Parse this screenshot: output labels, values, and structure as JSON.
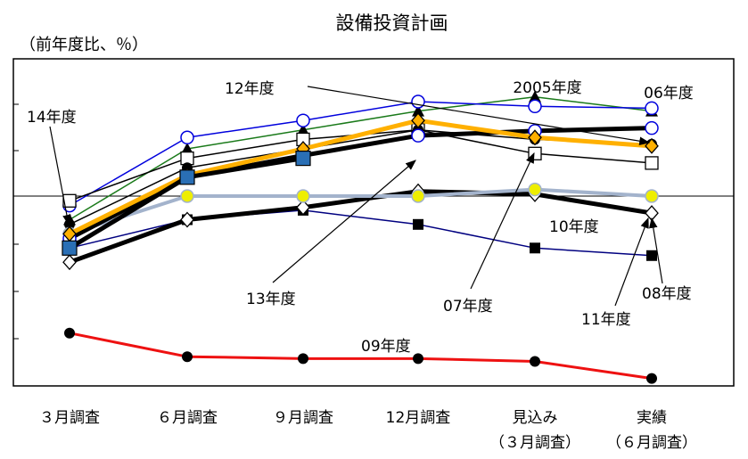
{
  "chart_data": {
    "type": "line",
    "title": "設備投資計画",
    "ylabel": "（前年度比、％）",
    "categories": [
      "３月調査",
      "６月調査",
      "９月調査",
      "12月調査",
      "見込み",
      "実績"
    ],
    "category_sublabels": [
      "",
      "",
      "",
      "",
      "（３月調査）",
      "（６月調査）"
    ],
    "ylim": [
      -20,
      15
    ],
    "grid": false,
    "zero_line": true,
    "series": [
      {
        "name": "2005年度",
        "values": [
          -2.5,
          5,
          7,
          9,
          10.5,
          9
        ],
        "color": "#1a7a1a",
        "width": 1.5,
        "marker": "triangle-filled",
        "marker_color": "#000000"
      },
      {
        "name": "06年度",
        "values": [
          -1,
          6.2,
          8,
          10,
          9.5,
          9.3
        ],
        "color": "#0000dd",
        "width": 1.5,
        "marker": "circle-open",
        "marker_color": "#0000dd"
      },
      {
        "name": "07年度",
        "values": [
          -3,
          3,
          5,
          7,
          6,
          5.5
        ],
        "color": "#000000",
        "width": 1.5,
        "marker": "circle-filled",
        "marker_color": "#000000"
      },
      {
        "name": "08年度",
        "values": [
          -5.5,
          -2.5,
          -1.5,
          -3,
          -5.5,
          -6.3
        ],
        "color": "#000080",
        "width": 1.5,
        "marker": "square-filled",
        "marker_color": "#000000"
      },
      {
        "name": "09年度",
        "values": [
          -14.5,
          -17,
          -17.2,
          -17.2,
          -17.5,
          -19.3
        ],
        "color": "#ee1111",
        "width": 3,
        "marker": "circle-filled",
        "marker_color": "#ee1111"
      },
      {
        "name": "10年度",
        "values": [
          -7,
          -2.5,
          -1.2,
          0.5,
          0.2,
          -1.8
        ],
        "color": "#000000",
        "width": 5,
        "marker": "diamond-open",
        "marker_color": "#ffffff"
      },
      {
        "name": "11年度",
        "values": [
          -4,
          0,
          0,
          0,
          0.7,
          0
        ],
        "color": "#a3b3cc",
        "width": 4,
        "marker": "circle-yellow",
        "marker_color": "#eeee00"
      },
      {
        "name": "12年度",
        "values": [
          -0.5,
          4,
          6,
          7,
          4.5,
          3.5
        ],
        "color": "#000000",
        "width": 1.5,
        "marker": "square-open",
        "marker_color": "#ffffff"
      },
      {
        "name": "13年度",
        "values": [
          -4.5,
          2,
          4.3,
          6.4,
          6.9,
          7.2
        ],
        "color": "#000000",
        "width": 5,
        "marker": "circle-open",
        "marker_color": "#ffffff"
      },
      {
        "name": "14年度",
        "values": [
          -4,
          2.2,
          5,
          8,
          6.2,
          5.3
        ],
        "color": "#ffb000",
        "width": 5,
        "marker": "diamond-orange",
        "marker_color": "#ffb000"
      }
    ],
    "series_extra": [
      {
        "name": "blue-square-series",
        "values": [
          -5.5,
          2,
          4,
          null,
          null,
          null
        ],
        "color": "#000000",
        "width": 5,
        "marker": "square-blue",
        "marker_color": "#2a6fb5"
      }
    ],
    "annotations": [
      {
        "text": "2005年度"
      },
      {
        "text": "06年度"
      },
      {
        "text": "12年度"
      },
      {
        "text": "14年度"
      },
      {
        "text": "10年度"
      },
      {
        "text": "13年度"
      },
      {
        "text": "07年度"
      },
      {
        "text": "08年度"
      },
      {
        "text": "11年度"
      },
      {
        "text": "09年度"
      }
    ]
  }
}
